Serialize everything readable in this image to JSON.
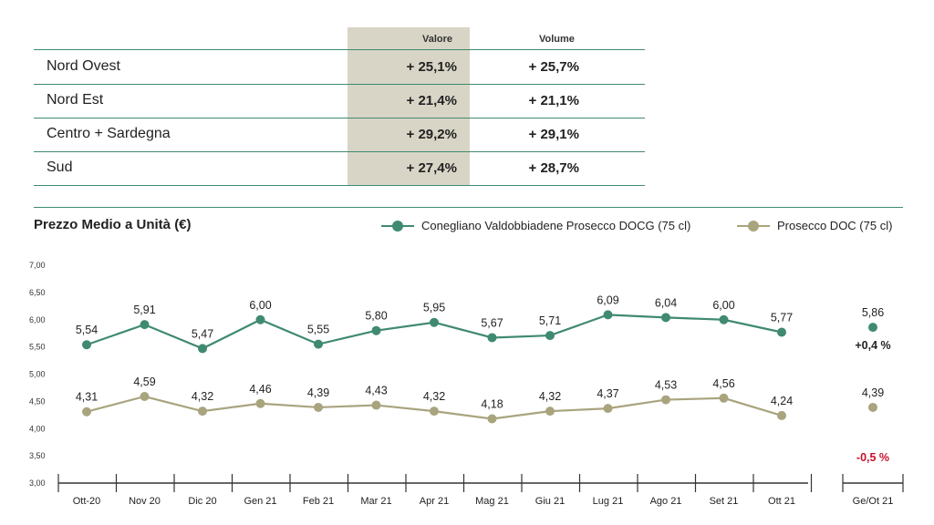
{
  "table": {
    "headers": {
      "valore": "Valore",
      "volume": "Volume"
    },
    "rows": [
      {
        "region": "Nord Ovest",
        "valore": "+ 25,1%",
        "volume": "+ 25,7%"
      },
      {
        "region": "Nord Est",
        "valore": "+ 21,4%",
        "volume": "+ 21,1%"
      },
      {
        "region": "Centro + Sardegna",
        "valore": "+ 29,2%",
        "volume": "+ 29,1%"
      },
      {
        "region": "Sud",
        "valore": "+ 27,4%",
        "volume": "+ 28,7%"
      }
    ]
  },
  "colors": {
    "docg": "#3f8a70",
    "doc": "#a9a47e",
    "accent": "#3f8a70",
    "negative": "#c8102e"
  },
  "chart_data": {
    "type": "line",
    "title": "Prezzo Medio a Unità (€)",
    "xlabel": "",
    "ylabel": "",
    "categories": [
      "Ott-20",
      "Nov 20",
      "Dic 20",
      "Gen 21",
      "Feb 21",
      "Mar 21",
      "Apr 21",
      "Mag 21",
      "Giu 21",
      "Lug 21",
      "Ago 21",
      "Set 21",
      "Ott 21"
    ],
    "ylim": [
      3.0,
      7.0
    ],
    "yticks": [
      "3,00",
      "3,50",
      "4,00",
      "4,50",
      "5,00",
      "5,50",
      "6,00",
      "6,50",
      "7,00"
    ],
    "ytick_values": [
      3.0,
      3.5,
      4.0,
      4.5,
      5.0,
      5.5,
      6.0,
      6.5,
      7.0
    ],
    "series": [
      {
        "name": "Conegliano Valdobbiadene Prosecco DOCG (75 cl)",
        "values": [
          5.54,
          5.91,
          5.47,
          6.0,
          5.55,
          5.8,
          5.95,
          5.67,
          5.71,
          6.09,
          6.04,
          6.0,
          5.77
        ],
        "labels": [
          "5,54",
          "5,91",
          "5,47",
          "6,00",
          "5,55",
          "5,80",
          "5,95",
          "5,67",
          "5,71",
          "6,09",
          "6,04",
          "6,00",
          "5,77"
        ],
        "ytd_value": 5.86,
        "ytd_label": "5,86",
        "ytd_change": "+0,4 %"
      },
      {
        "name": "Prosecco DOC (75 cl)",
        "values": [
          4.31,
          4.59,
          4.32,
          4.46,
          4.39,
          4.43,
          4.32,
          4.18,
          4.32,
          4.37,
          4.53,
          4.56,
          4.24
        ],
        "labels": [
          "4,31",
          "4,59",
          "4,32",
          "4,46",
          "4,39",
          "4,43",
          "4,32",
          "4,18",
          "4,32",
          "4,37",
          "4,53",
          "4,56",
          "4,24"
        ],
        "ytd_value": 4.39,
        "ytd_label": "4,39",
        "ytd_change": "-0,5 %"
      }
    ],
    "ytd_category": "Ge/Ot 21",
    "legend_position": "top-right",
    "grid": false
  }
}
